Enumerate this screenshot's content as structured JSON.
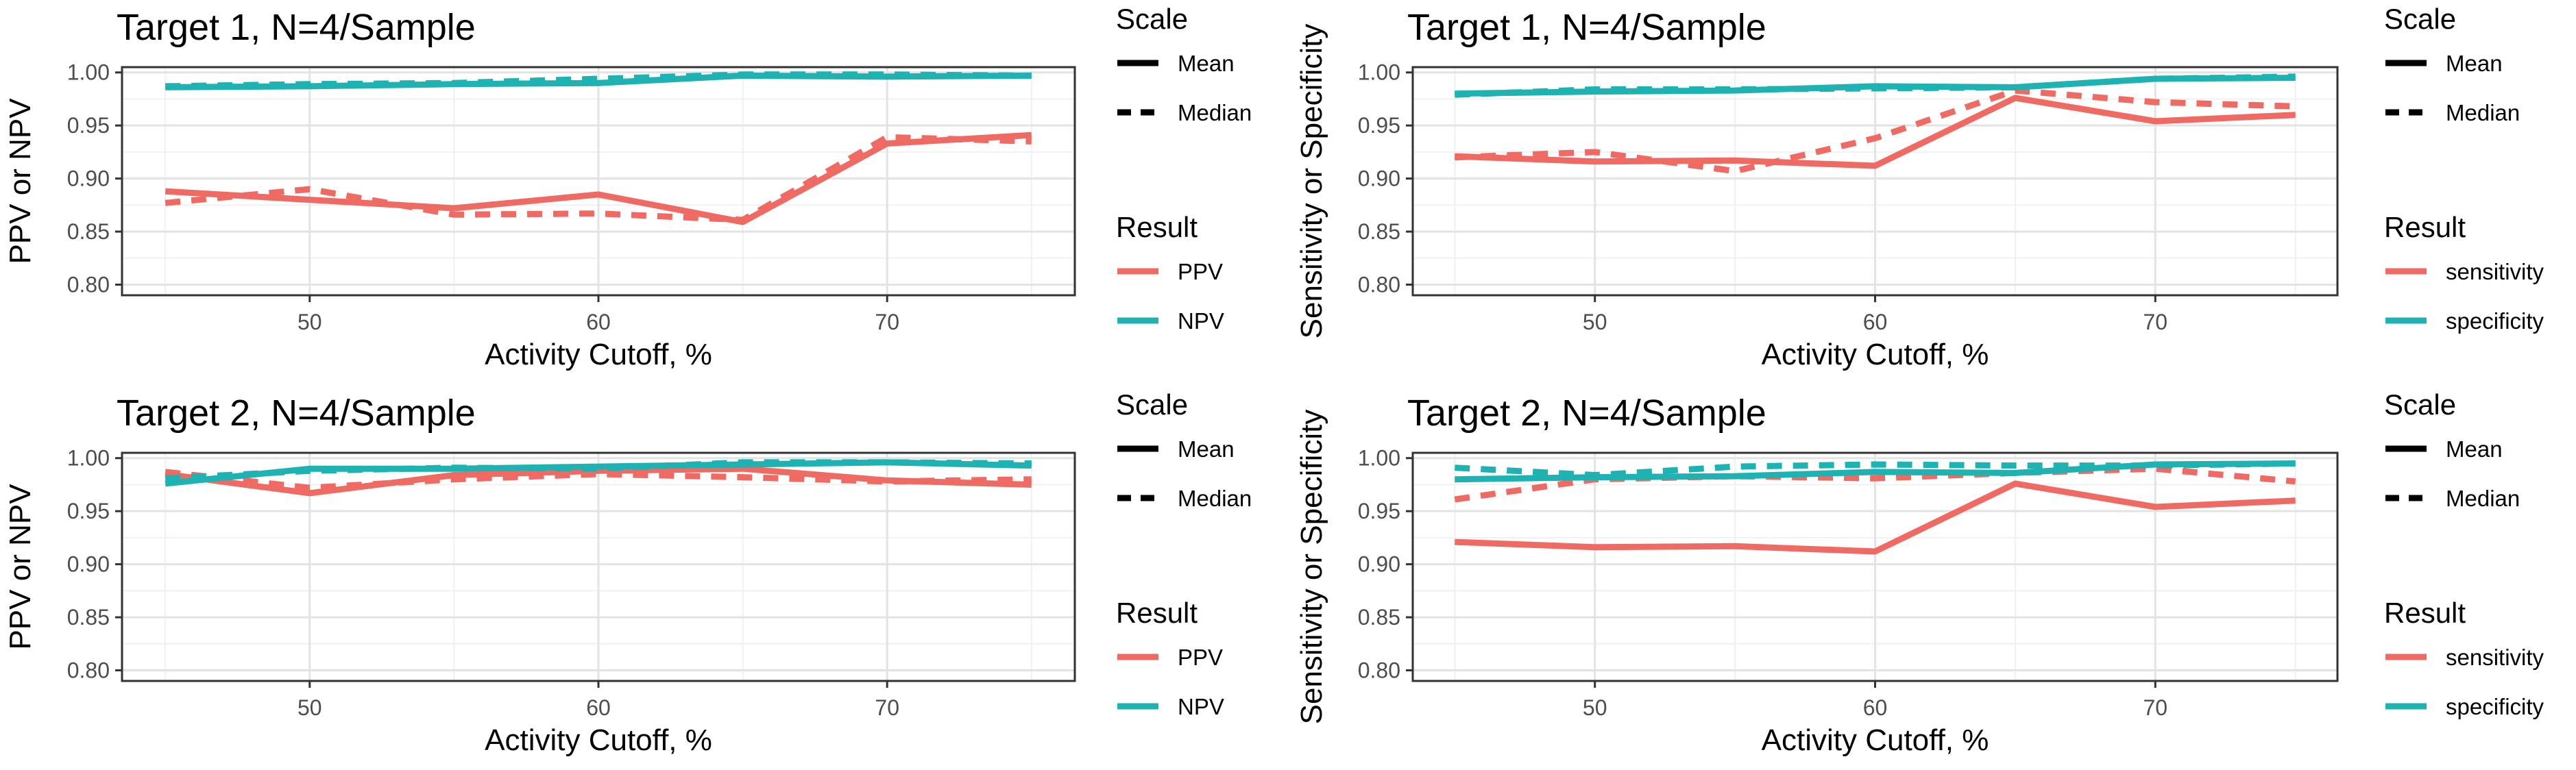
{
  "chart_data": [
    {
      "type": "line",
      "title": "Target 1, N=4/Sample",
      "xlabel": "Activity Cutoff, %",
      "ylabel": "PPV or NPV",
      "xlim": [
        43.5,
        76.5
      ],
      "ylim": [
        0.79,
        1.005
      ],
      "xticks": [
        50,
        60,
        70
      ],
      "yticks": [
        0.8,
        0.85,
        0.9,
        0.95,
        1.0
      ],
      "ytick_labels": [
        "0.80",
        "0.85",
        "0.90",
        "0.95",
        "1.00"
      ],
      "grid": true,
      "x": [
        45,
        50,
        55,
        60,
        65,
        70,
        75
      ],
      "legend": {
        "placement": "right",
        "scale_title": "Scale",
        "scale_items": [
          {
            "label": "Mean",
            "style": "solid"
          },
          {
            "label": "Median",
            "style": "dashed"
          }
        ],
        "result_title": "Result",
        "result_items": [
          {
            "label": "PPV",
            "color": "#EE6A63"
          },
          {
            "label": "NPV",
            "color": "#1FB2B3"
          }
        ]
      },
      "series": [
        {
          "name": "PPV",
          "scale": "Mean",
          "color": "#EE6A63",
          "values": [
            0.888,
            0.88,
            0.872,
            0.885,
            0.859,
            0.933,
            0.941
          ]
        },
        {
          "name": "PPV",
          "scale": "Median",
          "color": "#EE6A63",
          "values": [
            0.877,
            0.89,
            0.866,
            0.867,
            0.861,
            0.939,
            0.935
          ]
        },
        {
          "name": "NPV",
          "scale": "Mean",
          "color": "#1FB2B3",
          "values": [
            0.986,
            0.987,
            0.989,
            0.99,
            0.997,
            0.996,
            0.997
          ]
        },
        {
          "name": "NPV",
          "scale": "Median",
          "color": "#1FB2B3",
          "values": [
            0.987,
            0.989,
            0.99,
            0.994,
            0.998,
            0.998,
            0.997
          ]
        }
      ]
    },
    {
      "type": "line",
      "title": "Target 1, N=4/Sample",
      "xlabel": "Activity Cutoff, %",
      "ylabel": "Sensitivity or Specificity",
      "xlim": [
        43.5,
        76.5
      ],
      "ylim": [
        0.79,
        1.005
      ],
      "xticks": [
        50,
        60,
        70
      ],
      "yticks": [
        0.8,
        0.85,
        0.9,
        0.95,
        1.0
      ],
      "ytick_labels": [
        "0.80",
        "0.85",
        "0.90",
        "0.95",
        "1.00"
      ],
      "grid": true,
      "x": [
        45,
        50,
        55,
        60,
        65,
        70,
        75
      ],
      "legend": {
        "placement": "right",
        "scale_title": "Scale",
        "scale_items": [
          {
            "label": "Mean",
            "style": "solid"
          },
          {
            "label": "Median",
            "style": "dashed"
          }
        ],
        "result_title": "Result",
        "result_items": [
          {
            "label": "sensitivity",
            "color": "#EE6A63"
          },
          {
            "label": "specificity",
            "color": "#1FB2B3"
          }
        ]
      },
      "series": [
        {
          "name": "sensitivity",
          "scale": "Mean",
          "color": "#EE6A63",
          "values": [
            0.921,
            0.916,
            0.917,
            0.912,
            0.976,
            0.954,
            0.96
          ]
        },
        {
          "name": "sensitivity",
          "scale": "Median",
          "color": "#EE6A63",
          "values": [
            0.92,
            0.925,
            0.907,
            0.938,
            0.983,
            0.972,
            0.968
          ]
        },
        {
          "name": "specificity",
          "scale": "Mean",
          "color": "#1FB2B3",
          "values": [
            0.98,
            0.982,
            0.983,
            0.987,
            0.986,
            0.994,
            0.995
          ]
        },
        {
          "name": "specificity",
          "scale": "Median",
          "color": "#1FB2B3",
          "values": [
            0.979,
            0.984,
            0.984,
            0.985,
            0.986,
            0.994,
            0.996
          ]
        }
      ]
    },
    {
      "type": "line",
      "title": "Target 2, N=4/Sample",
      "xlabel": "Activity Cutoff, %",
      "ylabel": "PPV or NPV",
      "xlim": [
        43.5,
        76.5
      ],
      "ylim": [
        0.79,
        1.005
      ],
      "xticks": [
        50,
        60,
        70
      ],
      "yticks": [
        0.8,
        0.85,
        0.9,
        0.95,
        1.0
      ],
      "ytick_labels": [
        "0.80",
        "0.85",
        "0.90",
        "0.95",
        "1.00"
      ],
      "grid": true,
      "x": [
        45,
        50,
        55,
        60,
        65,
        70,
        75
      ],
      "legend": {
        "placement": "right",
        "scale_title": "Scale",
        "scale_items": [
          {
            "label": "Mean",
            "style": "solid"
          },
          {
            "label": "Median",
            "style": "dashed"
          }
        ],
        "result_title": "Result",
        "result_items": [
          {
            "label": "PPV",
            "color": "#EE6A63"
          },
          {
            "label": "NPV",
            "color": "#1FB2B3"
          }
        ]
      },
      "series": [
        {
          "name": "PPV",
          "scale": "Mean",
          "color": "#EE6A63",
          "values": [
            0.985,
            0.967,
            0.984,
            0.988,
            0.99,
            0.979,
            0.975
          ]
        },
        {
          "name": "PPV",
          "scale": "Median",
          "color": "#EE6A63",
          "values": [
            0.987,
            0.972,
            0.98,
            0.985,
            0.982,
            0.978,
            0.98
          ]
        },
        {
          "name": "NPV",
          "scale": "Mean",
          "color": "#1FB2B3",
          "values": [
            0.976,
            0.99,
            0.99,
            0.992,
            0.994,
            0.996,
            0.993
          ]
        },
        {
          "name": "NPV",
          "scale": "Median",
          "color": "#1FB2B3",
          "values": [
            0.981,
            0.988,
            0.991,
            0.99,
            0.996,
            0.996,
            0.995
          ]
        }
      ]
    },
    {
      "type": "line",
      "title": "Target 2, N=4/Sample",
      "xlabel": "Activity Cutoff, %",
      "ylabel": "Sensitivity or Specificity",
      "xlim": [
        43.5,
        76.5
      ],
      "ylim": [
        0.79,
        1.005
      ],
      "xticks": [
        50,
        60,
        70
      ],
      "yticks": [
        0.8,
        0.85,
        0.9,
        0.95,
        1.0
      ],
      "ytick_labels": [
        "0.80",
        "0.85",
        "0.90",
        "0.95",
        "1.00"
      ],
      "grid": true,
      "x": [
        45,
        50,
        55,
        60,
        65,
        70,
        75
      ],
      "legend": {
        "placement": "right",
        "scale_title": "Scale",
        "scale_items": [
          {
            "label": "Mean",
            "style": "solid"
          },
          {
            "label": "Median",
            "style": "dashed"
          }
        ],
        "result_title": "Result",
        "result_items": [
          {
            "label": "sensitivity",
            "color": "#EE6A63"
          },
          {
            "label": "specificity",
            "color": "#1FB2B3"
          }
        ]
      },
      "series": [
        {
          "name": "sensitivity",
          "scale": "Mean",
          "color": "#EE6A63",
          "values": [
            0.921,
            0.916,
            0.917,
            0.912,
            0.976,
            0.954,
            0.96
          ]
        },
        {
          "name": "sensitivity",
          "scale": "Median",
          "color": "#EE6A63",
          "values": [
            0.961,
            0.98,
            0.983,
            0.981,
            0.986,
            0.99,
            0.978
          ]
        },
        {
          "name": "specificity",
          "scale": "Mean",
          "color": "#1FB2B3",
          "values": [
            0.98,
            0.982,
            0.983,
            0.987,
            0.986,
            0.994,
            0.995
          ]
        },
        {
          "name": "specificity",
          "scale": "Median",
          "color": "#1FB2B3",
          "values": [
            0.991,
            0.984,
            0.992,
            0.994,
            0.993,
            0.993,
            0.995
          ]
        }
      ]
    }
  ]
}
